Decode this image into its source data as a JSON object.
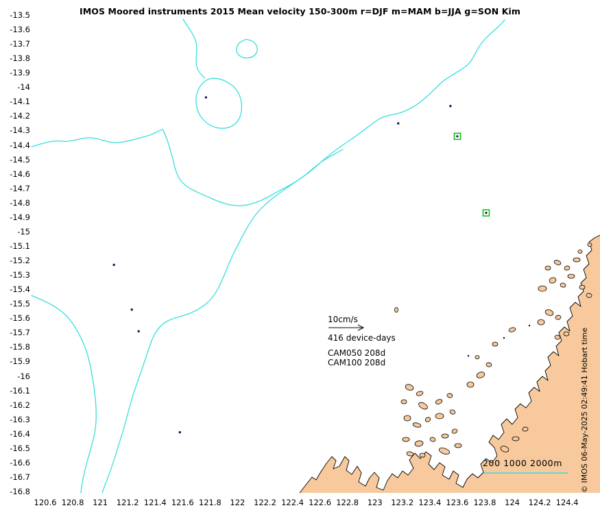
{
  "title": "IMOS Moored instruments 2015 Mean velocity 150-300m r=DJF m=MAM b=JJA g=SON Kim",
  "axes": {
    "y_tick_labels": [
      "-13.5",
      "-13.6",
      "-13.7",
      "-13.8",
      "-13.9",
      "-14",
      "-14.1",
      "-14.2",
      "-14.3",
      "-14.4",
      "-14.5",
      "-14.6",
      "-14.7",
      "-14.8",
      "-14.9",
      "-15",
      "-15.1",
      "-15.2",
      "-15.3",
      "-15.4",
      "-15.5",
      "-15.6",
      "-15.7",
      "-15.8",
      "-15.9",
      "-16",
      "-16.1",
      "-16.2",
      "-16.3",
      "-16.4",
      "-16.5",
      "-16.6",
      "-16.7",
      "-16.8"
    ],
    "x_tick_labels": [
      "120.6",
      "120.8",
      "121",
      "121.2",
      "121.4",
      "121.6",
      "121.8",
      "122",
      "122.2",
      "122.4",
      "122.6",
      "122.8",
      "123",
      "123.2",
      "123.4",
      "123.6",
      "123.8",
      "124",
      "124.2",
      "124.4"
    ]
  },
  "annotations": {
    "scale_label": "10cm/s",
    "device_days": "416 device-days",
    "cam050": "CAM050 208d",
    "cam100": "CAM100 208d"
  },
  "legend": {
    "depth_label": "200 1000 2000m"
  },
  "copyright": "© IMOS 06-May-2025 02:49:41 Hobart time",
  "colors": {
    "contour": "#35dede",
    "land": "#f7c99c",
    "land_edge": "#000000",
    "mooring_square": "#00c400",
    "dot": "#16165e",
    "text": "#000000"
  },
  "chart_data": {
    "type": "scatter",
    "title": "IMOS Moored instruments 2015 Mean velocity 150-300m r=DJF m=MAM b=JJA g=SON Kim",
    "xlabel": "",
    "ylabel": "",
    "xlim": [
      120.5,
      124.5
    ],
    "ylim": [
      -16.8,
      -13.5
    ],
    "x_ticks": [
      120.6,
      120.8,
      121,
      121.2,
      121.4,
      121.6,
      121.8,
      122,
      122.2,
      122.4,
      122.6,
      122.8,
      123,
      123.2,
      123.4,
      123.6,
      123.8,
      124,
      124.2,
      124.4
    ],
    "y_ticks": [
      -13.5,
      -13.6,
      -13.7,
      -13.8,
      -13.9,
      -14,
      -14.1,
      -14.2,
      -14.3,
      -14.4,
      -14.5,
      -14.6,
      -14.7,
      -14.8,
      -14.9,
      -15,
      -15.1,
      -15.2,
      -15.3,
      -15.4,
      -15.5,
      -15.6,
      -15.7,
      -15.8,
      -15.9,
      -16,
      -16.1,
      -16.2,
      -16.3,
      -16.4,
      -16.5,
      -16.6,
      -16.7,
      -16.8
    ],
    "season_codes": {
      "r": "DJF",
      "m": "MAM",
      "b": "JJA",
      "g": "SON"
    },
    "depth_contours_m": [
      200,
      1000,
      2000
    ],
    "scale_arrow": {
      "label": "10cm/s",
      "value_cm_s": 10
    },
    "total_device_days": 416,
    "mooring_records": [
      {
        "name": "CAM050",
        "days": 208
      },
      {
        "name": "CAM100",
        "days": 208
      }
    ],
    "green_squares": [
      {
        "lon": 123.6,
        "lat": -14.34
      },
      {
        "lon": 123.81,
        "lat": -14.87
      }
    ],
    "velocity_dots": [
      {
        "lon": 121.77,
        "lat": -14.07
      },
      {
        "lon": 123.55,
        "lat": -14.13
      },
      {
        "lon": 123.17,
        "lat": -14.25
      },
      {
        "lon": 121.1,
        "lat": -15.23
      },
      {
        "lon": 121.23,
        "lat": -15.54
      },
      {
        "lon": 121.28,
        "lat": -15.69
      },
      {
        "lon": 121.58,
        "lat": -16.39
      }
    ]
  }
}
